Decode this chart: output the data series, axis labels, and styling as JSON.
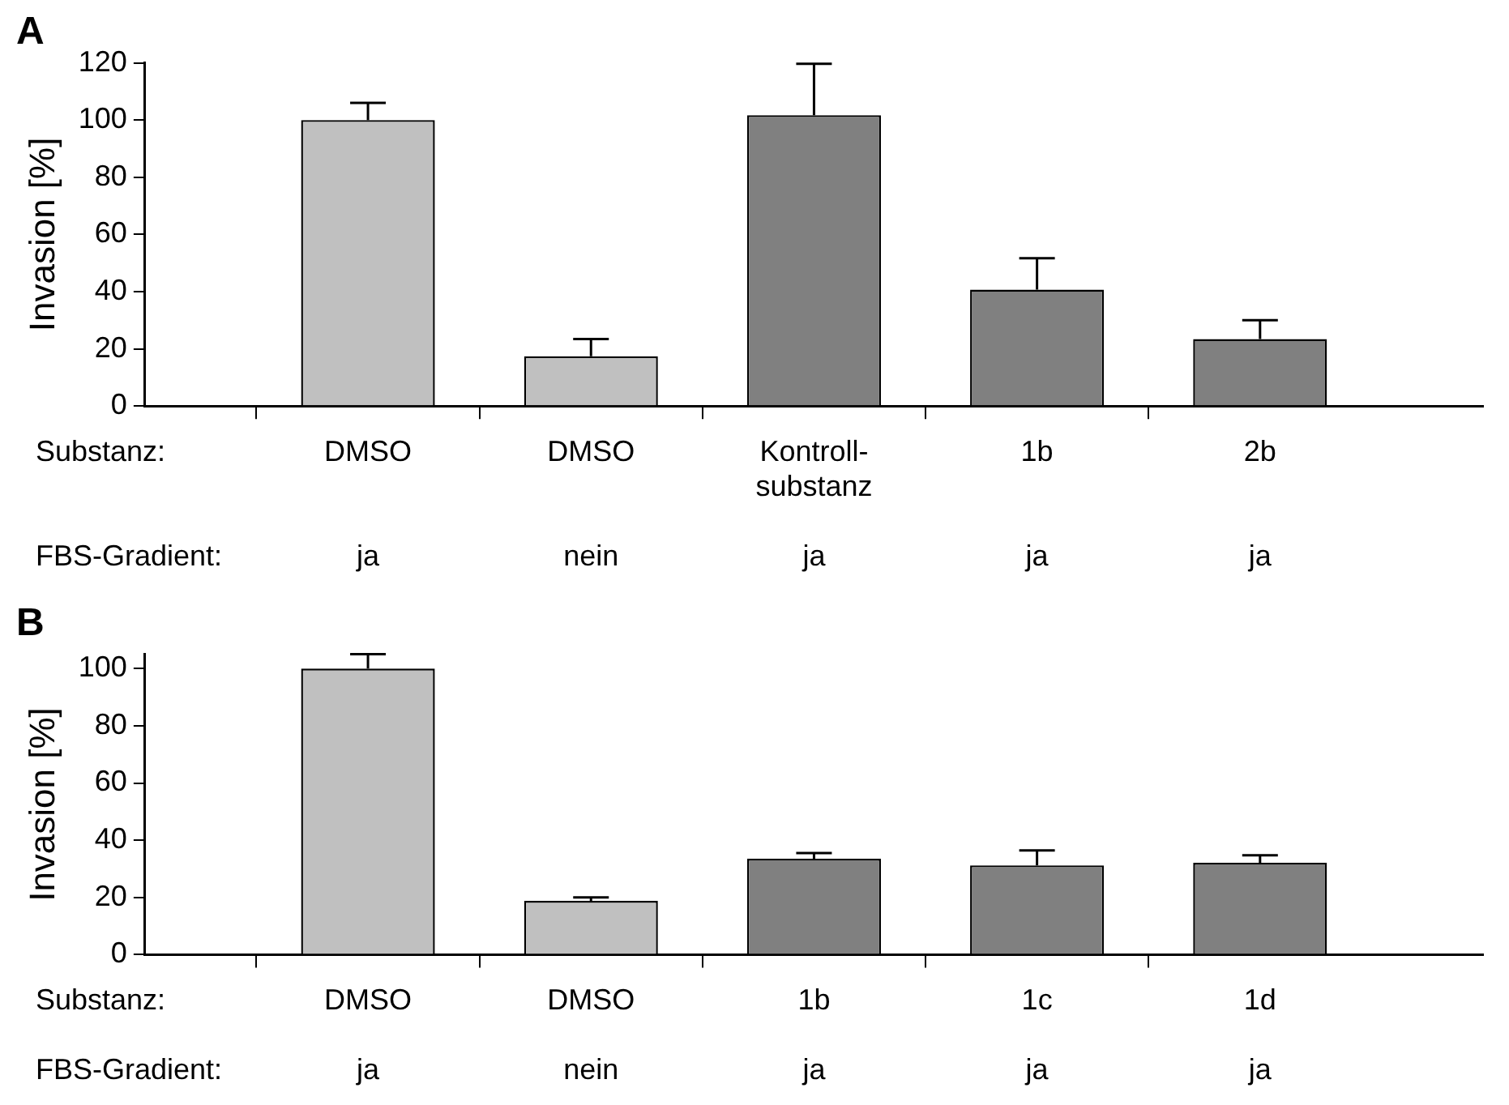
{
  "chart_data": [
    {
      "type": "bar",
      "title": "A",
      "ylabel": "Invasion [%]",
      "categories": [
        null,
        "DMSO\n\n\nja",
        "DMSO\n\n\nnein",
        "Kontroll-\nsubstanz\n\nja",
        "1b\n\n\nja",
        "2b\n\n\nja",
        null
      ],
      "values": [
        null,
        100,
        17.4,
        101.7,
        40.7,
        23.4,
        null
      ],
      "errors": [
        null,
        6,
        6,
        18,
        11,
        6.6,
        null
      ],
      "colors": [
        "#c0c0c0",
        "#c0c0c0",
        "#c0c0c0",
        "#808080",
        "#808080",
        "#808080",
        "#808080"
      ],
      "ylim": [
        0,
        120
      ],
      "yticks": [
        0,
        20,
        40,
        60,
        80,
        100,
        120
      ],
      "annotations": [
        "Substanz:",
        "FBS-Gradient:"
      ]
    },
    {
      "type": "bar",
      "title": "B",
      "ylabel": "Invasion [%]",
      "categories": [
        null,
        "DMSO\n\nja",
        "DMSO\n\nnein",
        "1b\n\nja",
        "1c\n\nja",
        "1d\n\nja",
        null
      ],
      "values": [
        null,
        100,
        18.8,
        33.5,
        31.2,
        32.1,
        null
      ],
      "errors": [
        null,
        5,
        1.2,
        2,
        5.2,
        2.6,
        null
      ],
      "colors": [
        "#c0c0c0",
        "#c0c0c0",
        "#c0c0c0",
        "#808080",
        "#808080",
        "#808080",
        "#808080"
      ],
      "ylim": [
        0,
        105
      ],
      "yticks": [
        0,
        20,
        40,
        60,
        80,
        100
      ],
      "annotations": [
        "Substanz:",
        "FBS-Gradient:"
      ]
    }
  ]
}
